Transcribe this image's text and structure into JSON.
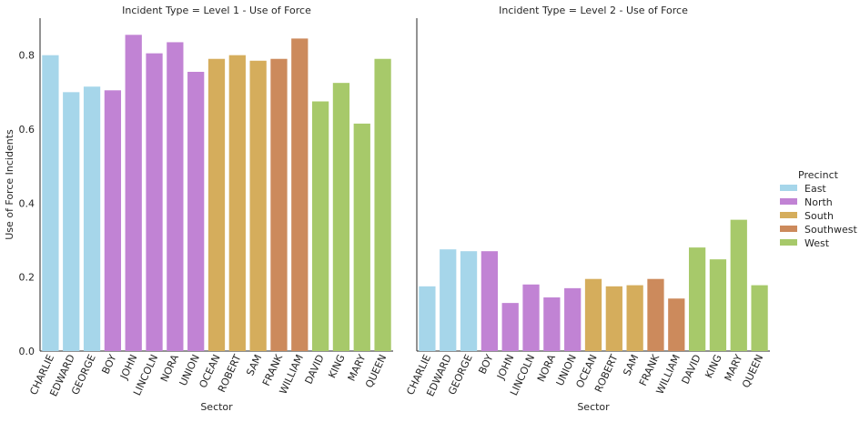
{
  "chart_data": {
    "type": "bar",
    "ylabel": "Use of Force Incidents",
    "xlabel": "Sector",
    "ylim": [
      0,
      0.9
    ],
    "yticks": [
      "0.0",
      "0.2",
      "0.4",
      "0.6",
      "0.8"
    ],
    "legend": {
      "title": "Precinct",
      "position": "right",
      "entries": [
        {
          "name": "East",
          "color": "#a6d6ea"
        },
        {
          "name": "North",
          "color": "#c183d4"
        },
        {
          "name": "South",
          "color": "#d5ad5c"
        },
        {
          "name": "Southwest",
          "color": "#cc8a5c"
        },
        {
          "name": "West",
          "color": "#a7c96a"
        }
      ]
    },
    "categories": [
      "CHARLIE",
      "EDWARD",
      "GEORGE",
      "BOY",
      "JOHN",
      "LINCOLN",
      "NORA",
      "UNION",
      "OCEAN",
      "ROBERT",
      "SAM",
      "FRANK",
      "WILLIAM",
      "DAVID",
      "KING",
      "MARY",
      "QUEEN"
    ],
    "category_precinct": [
      "East",
      "East",
      "East",
      "North",
      "North",
      "North",
      "North",
      "North",
      "South",
      "South",
      "South",
      "Southwest",
      "Southwest",
      "West",
      "West",
      "West",
      "West"
    ],
    "panels": [
      {
        "title": "Incident Type = Level 1 - Use of Force",
        "values": [
          0.8,
          0.7,
          0.715,
          0.705,
          0.855,
          0.805,
          0.835,
          0.755,
          0.79,
          0.8,
          0.785,
          0.79,
          0.845,
          0.675,
          0.725,
          0.615,
          0.79
        ]
      },
      {
        "title": "Incident Type = Level 2 - Use of Force",
        "values": [
          0.175,
          0.275,
          0.27,
          0.27,
          0.13,
          0.18,
          0.145,
          0.17,
          0.195,
          0.175,
          0.178,
          0.195,
          0.142,
          0.28,
          0.248,
          0.355,
          0.178
        ]
      }
    ]
  }
}
